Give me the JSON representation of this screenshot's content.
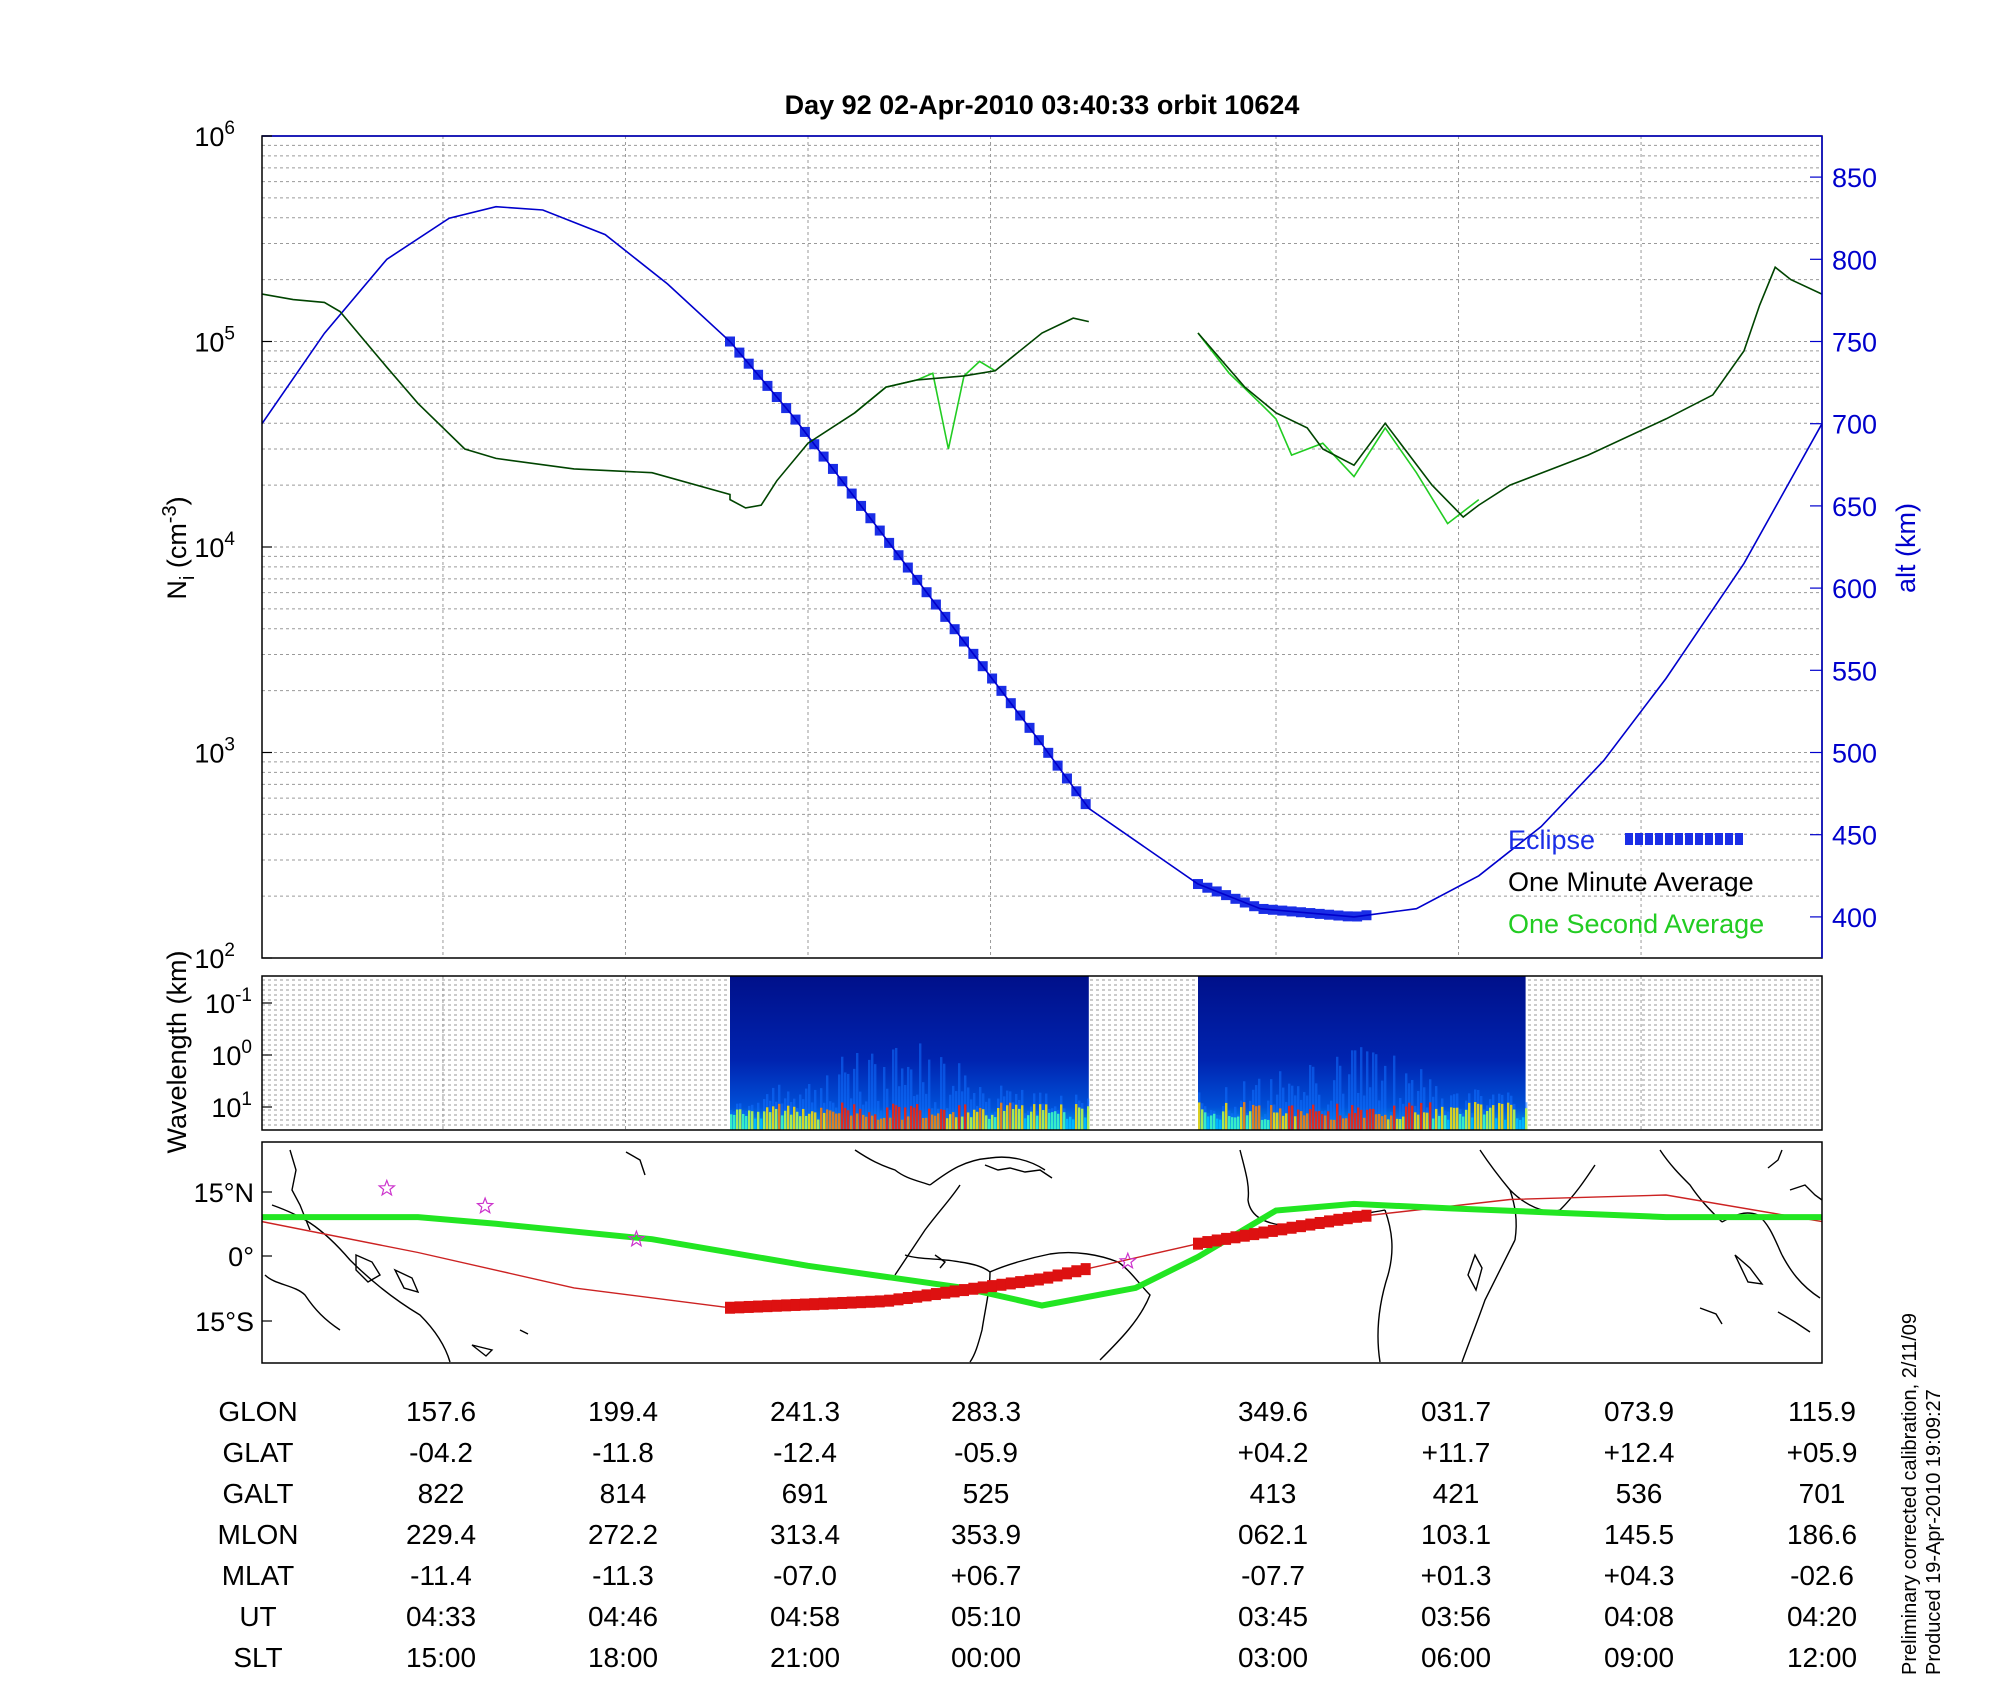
{
  "title": "Day 92  02-Apr-2010 03:40:33   orbit 10624",
  "colors": {
    "alt": "#0000cc",
    "eclipse": "#1a2ee6",
    "minute": "#004400",
    "second": "#22cc22",
    "track_green": "#22e622",
    "track_red": "#dd1111",
    "mag_eq": "#cc2222",
    "star": "#cc33cc"
  },
  "legend": {
    "eclipse": "Eclipse",
    "minute": "One Minute Average",
    "second": "One Second Average"
  },
  "notes": {
    "line1": "Preliminary corrected calibration, 2/11/09",
    "line2": "Produced 19-Apr-2010 19:09:27"
  },
  "chart_data": [
    {
      "type": "line",
      "name": "density",
      "ylabel_left": "N_i (cm^-3)",
      "ylabel_right": "alt (km)",
      "y_left_scale": "log",
      "y_left_ticks": [
        "10^2",
        "10^3",
        "10^4",
        "10^5",
        "10^6"
      ],
      "ylim_left": [
        100,
        1000000
      ],
      "ylim_right": [
        375,
        875
      ],
      "y_right_ticks": [
        "400",
        "450",
        "500",
        "550",
        "600",
        "650",
        "700",
        "750",
        "800",
        "850"
      ],
      "grid": true,
      "legend_position": "bottom-right",
      "x": [
        0,
        0.05,
        0.1,
        0.15,
        0.2,
        0.25,
        0.3,
        0.35,
        0.4,
        0.45,
        0.5,
        0.55,
        0.6,
        0.65,
        0.7,
        0.75,
        0.8,
        0.85,
        0.9,
        0.95,
        1.0
      ],
      "series": [
        {
          "name": "One Minute Average",
          "gaps": [
            [
              0.53,
              0.6
            ]
          ],
          "points": [
            [
              0.0,
              170000
            ],
            [
              0.02,
              160000
            ],
            [
              0.04,
              155000
            ],
            [
              0.05,
              140000
            ],
            [
              0.08,
              75000
            ],
            [
              0.1,
              50000
            ],
            [
              0.13,
              30000
            ],
            [
              0.15,
              27000
            ],
            [
              0.2,
              24000
            ],
            [
              0.25,
              23000
            ],
            [
              0.3,
              18000
            ],
            [
              0.3,
              17000
            ],
            [
              0.31,
              15500
            ],
            [
              0.32,
              16000
            ],
            [
              0.33,
              21000
            ],
            [
              0.35,
              32000
            ],
            [
              0.38,
              45000
            ],
            [
              0.4,
              60000
            ],
            [
              0.42,
              65000
            ],
            [
              0.45,
              68000
            ],
            [
              0.47,
              72000
            ],
            [
              0.5,
              110000
            ],
            [
              0.52,
              130000
            ],
            [
              0.53,
              125000
            ],
            [
              0.6,
              110000
            ],
            [
              0.63,
              60000
            ],
            [
              0.65,
              45000
            ],
            [
              0.67,
              38000
            ],
            [
              0.68,
              30000
            ],
            [
              0.7,
              25000
            ],
            [
              0.72,
              40000
            ],
            [
              0.75,
              20000
            ],
            [
              0.77,
              14000
            ],
            [
              0.78,
              16000
            ],
            [
              0.8,
              20000
            ],
            [
              0.85,
              28000
            ],
            [
              0.9,
              42000
            ],
            [
              0.93,
              55000
            ],
            [
              0.95,
              90000
            ],
            [
              0.96,
              150000
            ],
            [
              0.97,
              230000
            ],
            [
              0.98,
              200000
            ],
            [
              1.0,
              170000
            ]
          ]
        },
        {
          "name": "One Second Average",
          "gaps": [
            [
              0.53,
              0.6
            ]
          ],
          "points": [
            [
              0.38,
              45000
            ],
            [
              0.4,
              60000
            ],
            [
              0.42,
              65000
            ],
            [
              0.43,
              70000
            ],
            [
              0.44,
              30000
            ],
            [
              0.45,
              68000
            ],
            [
              0.46,
              80000
            ],
            [
              0.47,
              72000
            ],
            [
              0.6,
              110000
            ],
            [
              0.62,
              70000
            ],
            [
              0.64,
              50000
            ],
            [
              0.65,
              42000
            ],
            [
              0.66,
              28000
            ],
            [
              0.68,
              32000
            ],
            [
              0.7,
              22000
            ],
            [
              0.72,
              38000
            ],
            [
              0.74,
              23000
            ],
            [
              0.76,
              13000
            ],
            [
              0.78,
              17000
            ]
          ]
        },
        {
          "name": "altitude (km)",
          "axis": "right",
          "points": [
            [
              0.0,
              700
            ],
            [
              0.04,
              755
            ],
            [
              0.08,
              800
            ],
            [
              0.12,
              825
            ],
            [
              0.15,
              832
            ],
            [
              0.18,
              830
            ],
            [
              0.22,
              815
            ],
            [
              0.26,
              785
            ],
            [
              0.3,
              750
            ],
            [
              0.34,
              705
            ],
            [
              0.38,
              655
            ],
            [
              0.42,
              605
            ],
            [
              0.46,
              555
            ],
            [
              0.5,
              505
            ],
            [
              0.53,
              466
            ],
            [
              0.6,
              420
            ],
            [
              0.64,
              405
            ],
            [
              0.7,
              400
            ],
            [
              0.74,
              405
            ],
            [
              0.78,
              425
            ],
            [
              0.82,
              455
            ],
            [
              0.86,
              495
            ],
            [
              0.9,
              545
            ],
            [
              0.95,
              615
            ],
            [
              1.0,
              700
            ]
          ]
        }
      ],
      "eclipse_segments": [
        [
          0.3,
          0.53
        ],
        [
          0.6,
          0.71
        ]
      ]
    },
    {
      "type": "heatmap",
      "name": "spectrogram",
      "ylabel": "Wavelength (km)",
      "y_ticks": [
        "10^-1",
        "10^0",
        "10^1"
      ],
      "blocks": [
        [
          0.3,
          0.53
        ],
        [
          0.6,
          0.81
        ]
      ]
    },
    {
      "type": "line",
      "name": "map",
      "y_ticks": [
        "15°N",
        "0°",
        "15°S"
      ],
      "ylim": [
        -25,
        25
      ],
      "track": [
        [
          0.0,
          8
        ],
        [
          0.1,
          8
        ],
        [
          0.15,
          6.5
        ],
        [
          0.25,
          3
        ],
        [
          0.35,
          -3
        ],
        [
          0.45,
          -8
        ],
        [
          0.5,
          -12
        ],
        [
          0.56,
          -8
        ],
        [
          0.6,
          -1
        ],
        [
          0.65,
          9.5
        ],
        [
          0.7,
          11
        ],
        [
          0.76,
          10
        ],
        [
          0.83,
          9
        ],
        [
          0.9,
          8
        ],
        [
          0.96,
          8
        ],
        [
          1.0,
          8
        ]
      ],
      "magnetic_equator": [
        [
          0.0,
          7
        ],
        [
          0.1,
          0
        ],
        [
          0.2,
          -8
        ],
        [
          0.3,
          -12.5
        ],
        [
          0.4,
          -11
        ],
        [
          0.5,
          -6
        ],
        [
          0.6,
          2
        ],
        [
          0.7,
          8
        ],
        [
          0.8,
          12
        ],
        [
          0.9,
          13
        ],
        [
          1.0,
          7
        ]
      ],
      "stars": [
        [
          0.08,
          14.5
        ],
        [
          0.143,
          10.5
        ],
        [
          0.24,
          3
        ],
        [
          0.555,
          -2
        ]
      ]
    },
    {
      "type": "table",
      "rows": [
        {
          "label": "GLON",
          "values": [
            "157.6",
            "199.4",
            "241.3",
            "283.3",
            "349.6",
            "031.7",
            "073.9",
            "115.9"
          ]
        },
        {
          "label": "GLAT",
          "values": [
            "-04.2",
            "-11.8",
            "-12.4",
            "-05.9",
            "+04.2",
            "+11.7",
            "+12.4",
            "+05.9"
          ]
        },
        {
          "label": "GALT",
          "values": [
            "822",
            "814",
            "691",
            "525",
            "413",
            "421",
            "536",
            "701"
          ]
        },
        {
          "label": "MLON",
          "values": [
            "229.4",
            "272.2",
            "313.4",
            "353.9",
            "062.1",
            "103.1",
            "145.5",
            "186.6"
          ]
        },
        {
          "label": "MLAT",
          "values": [
            "-11.4",
            "-11.3",
            "-07.0",
            "+06.7",
            "-07.7",
            "+01.3",
            "+04.3",
            "-02.6"
          ]
        },
        {
          "label": "UT",
          "values": [
            "04:33",
            "04:46",
            "04:58",
            "05:10",
            "03:45",
            "03:56",
            "04:08",
            "04:20"
          ]
        },
        {
          "label": "SLT",
          "values": [
            "15:00",
            "18:00",
            "21:00",
            "00:00",
            "03:00",
            "06:00",
            "09:00",
            "12:00"
          ]
        }
      ]
    }
  ]
}
